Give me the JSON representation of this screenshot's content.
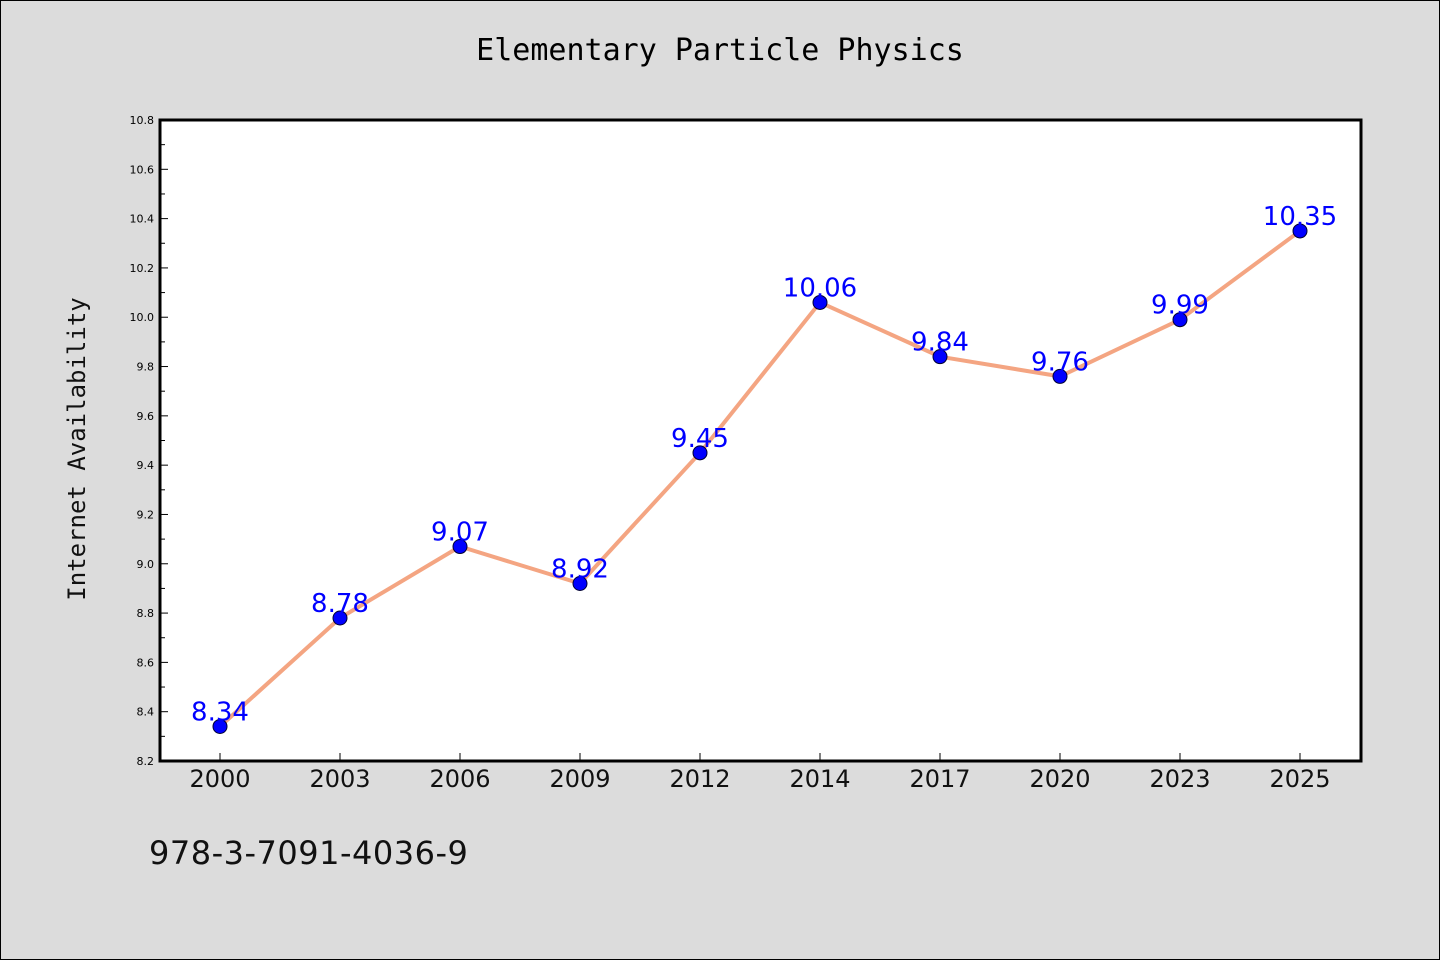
{
  "chart_data": {
    "type": "line",
    "title": "Elementary Particle Physics",
    "ylabel": "Internet Availability",
    "xlabel": "",
    "categories": [
      "2000",
      "2003",
      "2006",
      "2009",
      "2012",
      "2014",
      "2017",
      "2020",
      "2023",
      "2025"
    ],
    "series": [
      {
        "values": [
          8.34,
          8.78,
          9.07,
          8.92,
          9.45,
          10.06,
          9.84,
          9.76,
          9.99,
          10.35
        ],
        "line_color": "#f4a582",
        "marker_color": "#0000ff"
      }
    ],
    "data_labels": [
      "8.34",
      "8.78",
      "9.07",
      "8.92",
      "9.45",
      "10.06",
      "9.84",
      "9.76",
      "9.99",
      "10.35"
    ],
    "ylim": [
      8.2,
      10.8
    ],
    "yticks": [
      "8.2",
      "8.4",
      "8.6",
      "8.8",
      "9.0",
      "9.2",
      "9.4",
      "9.6",
      "9.8",
      "10.0",
      "10.2",
      "10.4",
      "10.6",
      "10.8"
    ],
    "grid": false,
    "legend": "none",
    "colors": {
      "background": "#dcdcdc",
      "plot_background": "#ffffff",
      "label_color": "#0000ff"
    }
  },
  "footer": {
    "code": "978-3-7091-4036-9"
  }
}
